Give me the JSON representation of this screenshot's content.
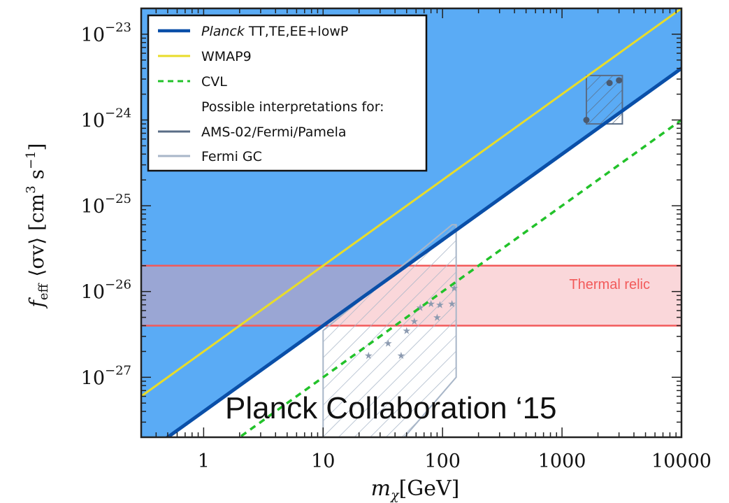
{
  "chart_data": {
    "type": "line",
    "xscale": "log",
    "yscale": "log",
    "xlim": [
      0.3,
      10000
    ],
    "ylim": [
      2e-28,
      2e-23
    ],
    "xlabel_base": "m",
    "xlabel_sub": "χ",
    "xlabel_unit": "[GeV]",
    "ylabel_base": "f",
    "ylabel_sub": "eff",
    "ylabel_mid": "⟨σv⟩ [cm",
    "ylabel_sup1": "3",
    "ylabel_mid2": " s",
    "ylabel_sup2": "−1",
    "ylabel_end": "]",
    "x_ticks": [
      {
        "value": 1,
        "label": "1"
      },
      {
        "value": 10,
        "label": "10"
      },
      {
        "value": 100,
        "label": "100"
      },
      {
        "value": 1000,
        "label": "1000"
      },
      {
        "value": 10000,
        "label": "10000"
      }
    ],
    "y_ticks": [
      {
        "value": 1e-27,
        "base": "10",
        "exp": "−27"
      },
      {
        "value": 1e-26,
        "base": "10",
        "exp": "−26"
      },
      {
        "value": 1e-25,
        "base": "10",
        "exp": "−25"
      },
      {
        "value": 1e-24,
        "base": "10",
        "exp": "−24"
      },
      {
        "value": 1e-23,
        "base": "10",
        "exp": "−23"
      }
    ],
    "grid": false,
    "legend_position": "top-left",
    "series": [
      {
        "name_italic": "Planck",
        "name_rest": " TT,TE,EE+lowP",
        "color": "#0a4fa8",
        "style": "solid",
        "fill_above": "#5aabf5",
        "x": [
          0.3,
          10000
        ],
        "y": [
          1.2e-28,
          4e-24
        ]
      },
      {
        "name": "WMAP9",
        "color": "#e8dc2a",
        "style": "solid",
        "x": [
          0.3,
          10000
        ],
        "y": [
          6e-28,
          2e-23
        ]
      },
      {
        "name": "CVL",
        "color": "#22c22a",
        "style": "dashed",
        "x": [
          0.3,
          10000
        ],
        "y": [
          3e-29,
          1e-24
        ]
      }
    ],
    "legend_note": "Possible interpretations for:",
    "regions": [
      {
        "name": "AMS-02/Fermi/Pamela",
        "color": "#5a6d86",
        "hatch": true,
        "x": [
          1600,
          3200
        ],
        "y": [
          9e-25,
          3.3e-24
        ],
        "points": [
          {
            "x": 1600,
            "y": 1e-24
          },
          {
            "x": 2500,
            "y": 2.7e-24
          },
          {
            "x": 3000,
            "y": 2.9e-24
          }
        ]
      },
      {
        "name": "Fermi GC",
        "color": "#a8b6c8",
        "hatch": true,
        "polygon": [
          [
            10,
            1.1e-27
          ],
          [
            10,
            3.5e-27
          ],
          [
            120,
            6e-26
          ],
          [
            130,
            6e-26
          ],
          [
            130,
            1e-27
          ],
          [
            40,
            1.5e-28
          ],
          [
            10,
            1.5e-28
          ]
        ],
        "points": [
          {
            "x": 24,
            "y": 1.8e-27
          },
          {
            "x": 35,
            "y": 2.5e-27
          },
          {
            "x": 45,
            "y": 1.8e-27
          },
          {
            "x": 50,
            "y": 3.5e-27
          },
          {
            "x": 58,
            "y": 4.5e-27
          },
          {
            "x": 65,
            "y": 6.5e-27
          },
          {
            "x": 80,
            "y": 7.2e-27
          },
          {
            "x": 90,
            "y": 5e-27
          },
          {
            "x": 95,
            "y": 7e-27
          },
          {
            "x": 120,
            "y": 7.2e-27
          },
          {
            "x": 125,
            "y": 1.1e-26
          }
        ]
      }
    ],
    "bands": [
      {
        "name": "Thermal relic",
        "y": [
          4e-27,
          2e-26
        ],
        "color": "#f25a5a",
        "fill": "#f2a0a8"
      }
    ],
    "annotation": "Planck Collaboration ‘15"
  }
}
